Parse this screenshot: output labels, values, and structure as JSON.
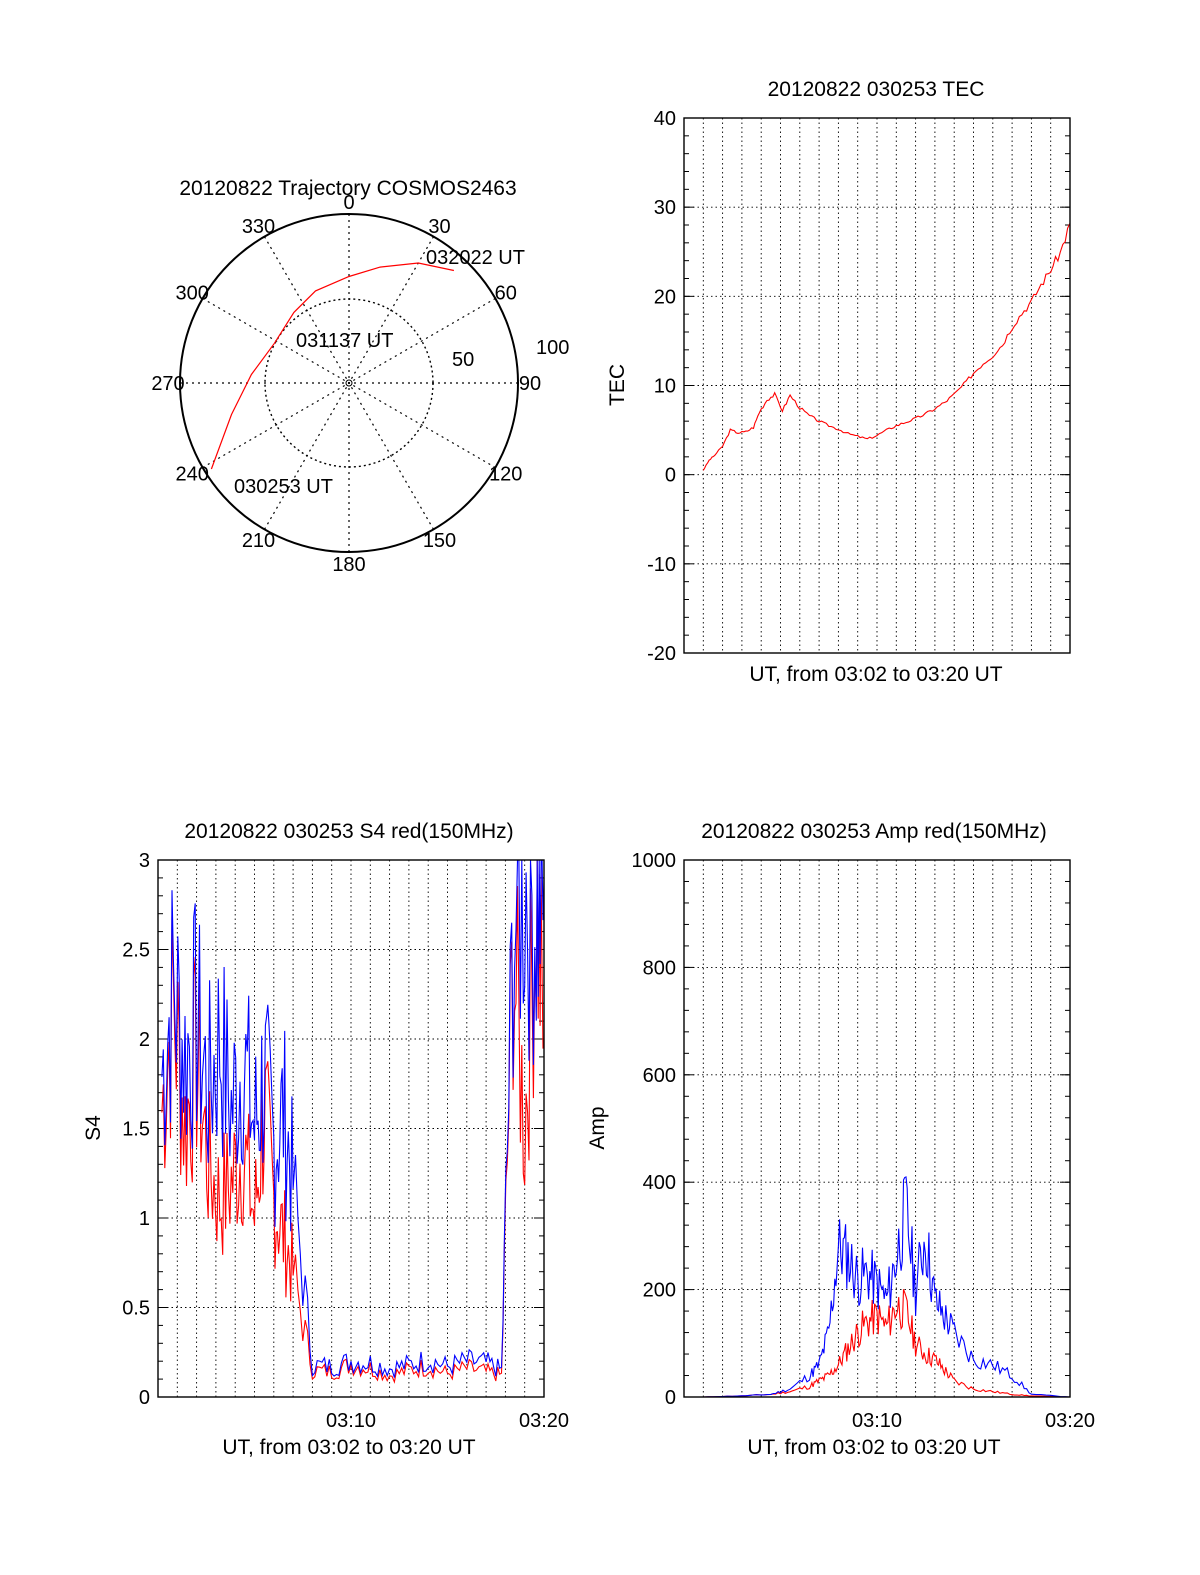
{
  "colors": {
    "red": "#ff0000",
    "blue": "#0000ff",
    "axis": "#000000",
    "grid": "#000000"
  },
  "chart_data": [
    {
      "type": "polar",
      "title": "20120822 Trajectory COSMOS2463",
      "azimuth_labels": [
        "0",
        "30",
        "60",
        "90",
        "120",
        "150",
        "180",
        "210",
        "240",
        "270",
        "300",
        "330"
      ],
      "radial_labels": [
        "50",
        "100"
      ],
      "track_labels": {
        "start": "030253 UT",
        "mid": "031137 UT",
        "end": "032022 UT"
      },
      "track": [
        {
          "az": 238,
          "r": 96
        },
        {
          "az": 255,
          "r": 72
        },
        {
          "az": 275,
          "r": 58
        },
        {
          "az": 298,
          "r": 50
        },
        {
          "az": 322,
          "r": 53
        },
        {
          "az": 340,
          "r": 58
        },
        {
          "az": 360,
          "r": 63
        },
        {
          "az": 375,
          "r": 71
        },
        {
          "az": 390,
          "r": 82
        },
        {
          "az": 403,
          "r": 91
        }
      ],
      "rmax": 100
    },
    {
      "type": "line",
      "title": "20120822 030253 TEC",
      "xlabel": "UT, from 03:02 to 03:20 UT",
      "ylabel": "TEC",
      "ylim": [
        -20,
        40
      ],
      "yticks": [
        "-20",
        "-10",
        "0",
        "10",
        "20",
        "30",
        "40"
      ],
      "xlim_min": [
        0,
        20
      ],
      "grid": true,
      "series": [
        {
          "color": "red",
          "x": [
            1.0,
            1.3,
            1.6,
            2.0,
            2.4,
            2.8,
            3.2,
            3.6,
            3.9,
            4.3,
            4.7,
            5.1,
            5.5,
            6.0,
            6.5,
            7.0,
            7.5,
            8.0,
            8.5,
            9.0,
            9.5,
            10.0,
            10.5,
            11.0,
            11.5,
            12.0,
            12.5,
            13.0,
            13.5,
            14.0,
            14.5,
            15.0,
            15.5,
            16.0,
            16.5,
            17.0,
            17.5,
            18.0,
            18.5,
            19.0,
            19.5,
            20.0
          ],
          "y": [
            0.5,
            1.6,
            2.2,
            3.2,
            5.0,
            4.7,
            4.8,
            5.3,
            7.0,
            8.4,
            9.0,
            7.2,
            8.9,
            7.5,
            6.6,
            6.0,
            5.5,
            5.1,
            4.6,
            4.3,
            4.0,
            4.4,
            5.0,
            5.5,
            5.9,
            6.3,
            6.8,
            7.4,
            8.1,
            9.0,
            10.1,
            11.4,
            12.5,
            13.4,
            14.6,
            16.6,
            18.1,
            19.4,
            21.3,
            23.0,
            24.9,
            28.2
          ]
        }
      ]
    },
    {
      "type": "line",
      "title": "20120822 030253 S4 red(150MHz)",
      "xlabel": "UT, from 03:02 to 03:20 UT",
      "ylabel": "S4",
      "ylim": [
        0,
        3
      ],
      "yticks": [
        "0",
        "0.5",
        "1",
        "1.5",
        "2",
        "2.5",
        "3"
      ],
      "xticks": [
        "03:10",
        "03:20"
      ],
      "xlim_min": [
        0,
        20
      ],
      "grid": true,
      "series": [
        {
          "color": "red",
          "x": [
            0.2,
            0.8,
            1.4,
            2.0,
            2.6,
            3.2,
            3.8,
            4.4,
            5.0,
            5.5,
            6.0,
            6.5,
            7.0,
            8.0,
            9.0,
            10.0,
            11.0,
            12.0,
            13.0,
            14.0,
            15.0,
            16.0,
            17.0,
            17.8,
            18.4,
            19.0,
            19.6,
            20.0
          ],
          "y": [
            1.6,
            2.2,
            1.5,
            1.9,
            1.3,
            1.1,
            1.2,
            1.4,
            1.0,
            1.6,
            1.1,
            0.9,
            0.7,
            0.15,
            0.14,
            0.18,
            0.16,
            0.12,
            0.15,
            0.17,
            0.13,
            0.16,
            0.14,
            0.12,
            2.5,
            1.5,
            2.8,
            2.0
          ]
        },
        {
          "color": "blue",
          "x": [
            0.2,
            0.8,
            1.4,
            2.0,
            2.6,
            3.2,
            3.8,
            4.4,
            5.0,
            5.5,
            6.0,
            6.5,
            7.0,
            8.0,
            9.0,
            10.0,
            11.0,
            12.0,
            13.0,
            14.0,
            15.0,
            16.0,
            17.0,
            17.8,
            18.4,
            19.0,
            19.6,
            20.0
          ],
          "y": [
            1.8,
            2.3,
            1.9,
            2.1,
            1.7,
            2.0,
            1.6,
            1.9,
            1.5,
            1.8,
            1.4,
            1.6,
            1.2,
            0.18,
            0.17,
            0.2,
            0.19,
            0.16,
            0.18,
            0.21,
            0.17,
            0.2,
            0.19,
            0.15,
            2.6,
            2.9,
            2.7,
            2.9
          ]
        }
      ]
    },
    {
      "type": "line",
      "title": "20120822 030253 Amp red(150MHz)",
      "xlabel": "UT, from 03:02 to 03:20 UT",
      "ylabel": "Amp",
      "ylim": [
        0,
        1000
      ],
      "yticks": [
        "0",
        "200",
        "400",
        "600",
        "800",
        "1000"
      ],
      "xticks": [
        "03:10",
        "03:20"
      ],
      "xlim_min": [
        0,
        20
      ],
      "grid": true,
      "series": [
        {
          "color": "red",
          "x": [
            1.0,
            3.0,
            4.5,
            5.5,
            6.5,
            7.0,
            7.5,
            8.0,
            8.5,
            9.0,
            9.5,
            10.0,
            10.5,
            11.0,
            11.5,
            12.0,
            12.5,
            13.0,
            13.5,
            14.0,
            15.0,
            16.0,
            17.0,
            18.0,
            20.0
          ],
          "y": [
            0,
            2,
            5,
            10,
            20,
            30,
            40,
            60,
            90,
            120,
            140,
            150,
            130,
            170,
            160,
            100,
            80,
            70,
            50,
            30,
            15,
            10,
            5,
            2,
            0
          ]
        },
        {
          "color": "blue",
          "x": [
            1.0,
            3.0,
            4.5,
            5.5,
            6.5,
            7.0,
            7.5,
            8.0,
            8.5,
            9.0,
            9.5,
            10.0,
            10.5,
            11.0,
            11.5,
            12.0,
            12.5,
            13.0,
            13.5,
            14.0,
            15.0,
            16.0,
            17.0,
            18.0,
            20.0
          ],
          "y": [
            0,
            2,
            5,
            15,
            40,
            60,
            120,
            280,
            260,
            220,
            230,
            210,
            180,
            260,
            350,
            200,
            300,
            180,
            150,
            120,
            70,
            60,
            40,
            5,
            0
          ]
        }
      ]
    }
  ]
}
